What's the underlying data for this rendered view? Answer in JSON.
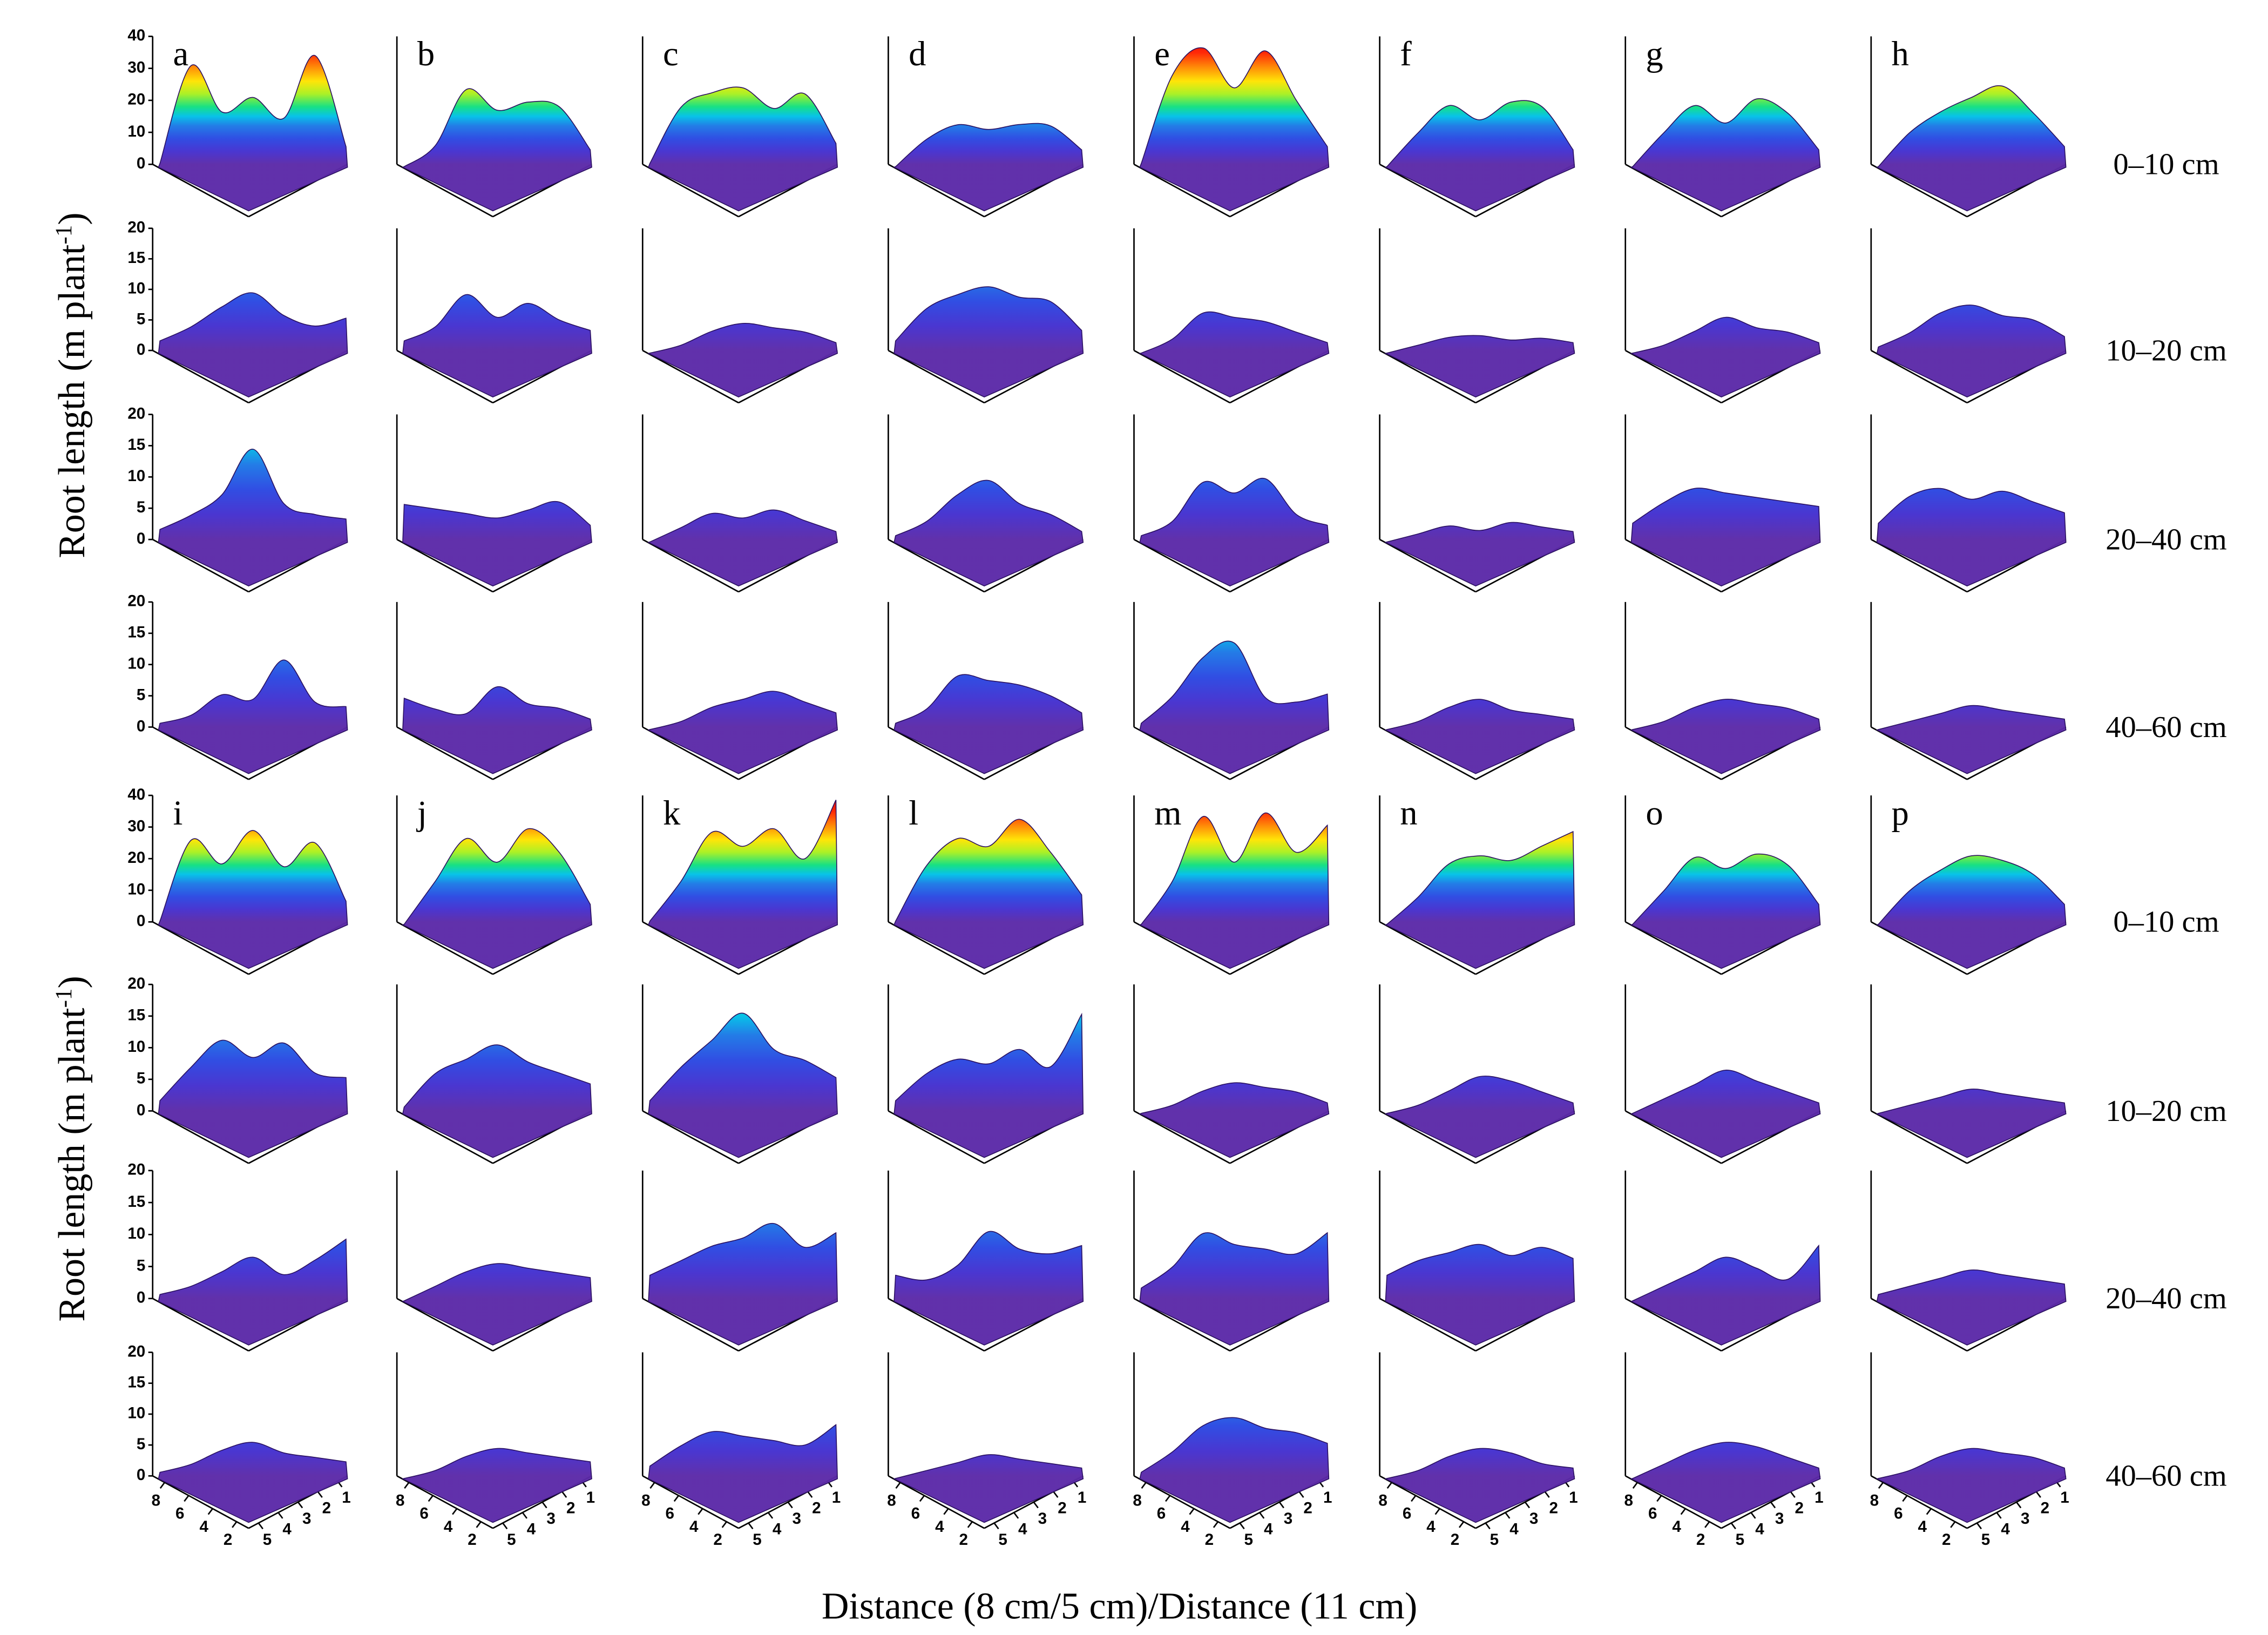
{
  "x_label": "Distance (8 cm/5 cm)/Distance (11 cm)",
  "y_labels": [
    {
      "text": "Root length (m plant",
      "sup": "-1",
      "end": ")"
    },
    {
      "text": "Root length (m plant",
      "sup": "-1",
      "end": ")"
    }
  ],
  "row_labels": [
    "0–10 cm",
    "10–20 cm",
    "20–40 cm",
    "40–60 cm",
    "0–10 cm",
    "10–20 cm",
    "20–40 cm",
    "40–60 cm"
  ],
  "chart_data": [
    {
      "type": "surface",
      "label": "a",
      "zlim": [
        0,
        40
      ],
      "zticks": [
        0,
        10,
        20,
        30,
        40
      ],
      "profile": [
        3,
        33,
        18,
        22,
        15,
        34,
        5
      ]
    },
    {
      "type": "surface",
      "label": "b",
      "zlim": [
        0,
        40
      ],
      "profile": [
        2,
        8,
        25,
        18,
        20,
        18,
        4
      ]
    },
    {
      "type": "surface",
      "label": "c",
      "zlim": [
        0,
        40
      ],
      "profile": [
        3,
        20,
        24,
        25,
        18,
        22,
        6
      ]
    },
    {
      "type": "surface",
      "label": "d",
      "zlim": [
        0,
        40
      ],
      "profile": [
        2,
        10,
        14,
        12,
        13,
        12,
        4
      ]
    },
    {
      "type": "surface",
      "label": "e",
      "zlim": [
        0,
        40
      ],
      "profile": [
        3,
        30,
        38,
        25,
        36,
        20,
        5
      ]
    },
    {
      "type": "surface",
      "label": "f",
      "zlim": [
        0,
        40
      ],
      "profile": [
        2,
        12,
        20,
        15,
        20,
        18,
        4
      ]
    },
    {
      "type": "surface",
      "label": "g",
      "zlim": [
        0,
        40
      ],
      "profile": [
        2,
        12,
        20,
        14,
        21,
        16,
        4
      ]
    },
    {
      "type": "surface",
      "label": "h",
      "zlim": [
        0,
        40
      ],
      "profile": [
        2,
        12,
        18,
        22,
        25,
        16,
        5
      ]
    },
    {
      "type": "surface",
      "zlim": [
        0,
        20
      ],
      "zticks": [
        0,
        5,
        10,
        15,
        20
      ],
      "profile": [
        3,
        5,
        8,
        10,
        6,
        4,
        5
      ]
    },
    {
      "type": "surface",
      "zlim": [
        0,
        20
      ],
      "profile": [
        3,
        5,
        10,
        6,
        8,
        5,
        3
      ]
    },
    {
      "type": "surface",
      "zlim": [
        0,
        20
      ],
      "profile": [
        1,
        2,
        4,
        5,
        4,
        3,
        1
      ]
    },
    {
      "type": "surface",
      "zlim": [
        0,
        20
      ],
      "profile": [
        3,
        8,
        10,
        11,
        9,
        8,
        3
      ]
    },
    {
      "type": "surface",
      "zlim": [
        0,
        20
      ],
      "profile": [
        1,
        3,
        7,
        6,
        5,
        3,
        1
      ]
    },
    {
      "type": "surface",
      "zlim": [
        0,
        20
      ],
      "profile": [
        1,
        2,
        3,
        3,
        2,
        2,
        1
      ]
    },
    {
      "type": "surface",
      "zlim": [
        0,
        20
      ],
      "profile": [
        1,
        2,
        4,
        6,
        4,
        3,
        1
      ]
    },
    {
      "type": "surface",
      "zlim": [
        0,
        20
      ],
      "profile": [
        2,
        4,
        7,
        8,
        6,
        5,
        2
      ]
    },
    {
      "type": "surface",
      "zlim": [
        0,
        20
      ],
      "zticks": [
        0,
        5,
        10,
        15,
        20
      ],
      "profile": [
        3,
        5,
        8,
        15,
        6,
        4,
        3
      ]
    },
    {
      "type": "surface",
      "zlim": [
        0,
        20
      ],
      "profile": [
        7,
        6,
        5,
        4,
        5,
        6,
        2
      ]
    },
    {
      "type": "surface",
      "zlim": [
        0,
        20
      ],
      "profile": [
        1,
        3,
        5,
        4,
        5,
        3,
        1
      ]
    },
    {
      "type": "surface",
      "zlim": [
        0,
        20
      ],
      "profile": [
        2,
        4,
        8,
        10,
        6,
        4,
        1
      ]
    },
    {
      "type": "surface",
      "zlim": [
        0,
        20
      ],
      "profile": [
        2,
        4,
        10,
        8,
        10,
        4,
        2
      ]
    },
    {
      "type": "surface",
      "zlim": [
        0,
        20
      ],
      "profile": [
        1,
        2,
        3,
        2,
        3,
        2,
        1
      ]
    },
    {
      "type": "surface",
      "zlim": [
        0,
        20
      ],
      "profile": [
        4,
        7,
        9,
        8,
        7,
        6,
        5
      ]
    },
    {
      "type": "surface",
      "zlim": [
        0,
        20
      ],
      "profile": [
        4,
        8,
        9,
        7,
        8,
        6,
        4
      ]
    },
    {
      "type": "surface",
      "zlim": [
        0,
        20
      ],
      "zticks": [
        0,
        5,
        10,
        15,
        20
      ],
      "profile": [
        2,
        3,
        6,
        5,
        11,
        4,
        3
      ]
    },
    {
      "type": "surface",
      "zlim": [
        0,
        20
      ],
      "profile": [
        6,
        4,
        3,
        7,
        4,
        3,
        1
      ]
    },
    {
      "type": "surface",
      "zlim": [
        0,
        20
      ],
      "profile": [
        1,
        2,
        4,
        5,
        6,
        4,
        2
      ]
    },
    {
      "type": "surface",
      "zlim": [
        0,
        20
      ],
      "profile": [
        2,
        4,
        9,
        8,
        7,
        5,
        2
      ]
    },
    {
      "type": "surface",
      "zlim": [
        0,
        20
      ],
      "profile": [
        2,
        6,
        12,
        14,
        5,
        4,
        5
      ]
    },
    {
      "type": "surface",
      "zlim": [
        0,
        20
      ],
      "profile": [
        1,
        2,
        4,
        5,
        3,
        2,
        1
      ]
    },
    {
      "type": "surface",
      "zlim": [
        0,
        20
      ],
      "profile": [
        1,
        2,
        4,
        5,
        4,
        3,
        1
      ]
    },
    {
      "type": "surface",
      "zlim": [
        0,
        20
      ],
      "profile": [
        1,
        2,
        3,
        4,
        3,
        2,
        1
      ]
    },
    {
      "type": "surface",
      "label": "i",
      "zlim": [
        0,
        40
      ],
      "zticks": [
        0,
        10,
        20,
        30,
        40
      ],
      "profile": [
        3,
        28,
        20,
        30,
        18,
        25,
        6
      ]
    },
    {
      "type": "surface",
      "label": "j",
      "zlim": [
        0,
        40
      ],
      "profile": [
        2,
        15,
        28,
        20,
        30,
        22,
        5
      ]
    },
    {
      "type": "surface",
      "label": "k",
      "zlim": [
        0,
        40
      ],
      "profile": [
        3,
        15,
        30,
        25,
        30,
        20,
        38
      ]
    },
    {
      "type": "surface",
      "label": "l",
      "zlim": [
        0,
        40
      ],
      "profile": [
        3,
        20,
        28,
        25,
        33,
        22,
        8
      ]
    },
    {
      "type": "surface",
      "label": "m",
      "zlim": [
        0,
        40
      ],
      "profile": [
        2,
        15,
        35,
        20,
        35,
        22,
        30
      ]
    },
    {
      "type": "surface",
      "label": "n",
      "zlim": [
        0,
        40
      ],
      "profile": [
        2,
        10,
        20,
        22,
        20,
        24,
        28
      ]
    },
    {
      "type": "surface",
      "label": "o",
      "zlim": [
        0,
        40
      ],
      "profile": [
        2,
        12,
        22,
        18,
        22,
        18,
        5
      ]
    },
    {
      "type": "surface",
      "label": "p",
      "zlim": [
        0,
        40
      ],
      "profile": [
        2,
        12,
        18,
        22,
        20,
        15,
        5
      ]
    },
    {
      "type": "surface",
      "zlim": [
        0,
        20
      ],
      "zticks": [
        0,
        5,
        10,
        15,
        20
      ],
      "profile": [
        3,
        8,
        12,
        9,
        11,
        6,
        5
      ]
    },
    {
      "type": "surface",
      "zlim": [
        0,
        20
      ],
      "profile": [
        2,
        7,
        9,
        11,
        8,
        6,
        4
      ]
    },
    {
      "type": "surface",
      "zlim": [
        0,
        20
      ],
      "profile": [
        3,
        8,
        12,
        16,
        10,
        8,
        5
      ]
    },
    {
      "type": "surface",
      "zlim": [
        0,
        20
      ],
      "profile": [
        3,
        7,
        9,
        8,
        10,
        7,
        15
      ]
    },
    {
      "type": "surface",
      "zlim": [
        0,
        20
      ],
      "profile": [
        1,
        2,
        4,
        5,
        4,
        3,
        1
      ]
    },
    {
      "type": "surface",
      "zlim": [
        0,
        20
      ],
      "profile": [
        1,
        2,
        4,
        6,
        5,
        3,
        1
      ]
    },
    {
      "type": "surface",
      "zlim": [
        0,
        20
      ],
      "profile": [
        1,
        3,
        5,
        7,
        5,
        3,
        1
      ]
    },
    {
      "type": "surface",
      "zlim": [
        0,
        20
      ],
      "profile": [
        1,
        2,
        3,
        4,
        3,
        2,
        1
      ]
    },
    {
      "type": "surface",
      "zlim": [
        0,
        20
      ],
      "zticks": [
        0,
        5,
        10,
        15,
        20
      ],
      "profile": [
        2,
        3,
        5,
        7,
        4,
        6,
        9
      ]
    },
    {
      "type": "surface",
      "zlim": [
        0,
        20
      ],
      "profile": [
        1,
        3,
        5,
        6,
        5,
        4,
        3
      ]
    },
    {
      "type": "surface",
      "zlim": [
        0,
        20
      ],
      "profile": [
        5,
        7,
        9,
        10,
        12,
        8,
        10
      ]
    },
    {
      "type": "surface",
      "zlim": [
        0,
        20
      ],
      "profile": [
        5,
        4,
        6,
        11,
        8,
        7,
        8
      ]
    },
    {
      "type": "surface",
      "zlim": [
        0,
        20
      ],
      "profile": [
        3,
        6,
        11,
        9,
        8,
        7,
        10
      ]
    },
    {
      "type": "surface",
      "zlim": [
        0,
        20
      ],
      "profile": [
        5,
        7,
        8,
        9,
        7,
        8,
        6
      ]
    },
    {
      "type": "surface",
      "zlim": [
        0,
        20
      ],
      "profile": [
        1,
        3,
        5,
        7,
        5,
        3,
        8
      ]
    },
    {
      "type": "surface",
      "zlim": [
        0,
        20
      ],
      "profile": [
        2,
        3,
        4,
        5,
        4,
        3,
        2
      ]
    },
    {
      "type": "surface",
      "zlim": [
        0,
        20
      ],
      "zticks": [
        0,
        5,
        10,
        15,
        20
      ],
      "xlim": [
        9,
        1
      ],
      "xticks": [
        8,
        6,
        4,
        2
      ],
      "ylim": [
        5.5,
        0.5
      ],
      "yticks": [
        5,
        4,
        3,
        2,
        1
      ],
      "profile": [
        2,
        3,
        5,
        6,
        4,
        3,
        2
      ]
    },
    {
      "type": "surface",
      "zlim": [
        0,
        20
      ],
      "xlim": [
        9,
        1
      ],
      "xticks": [
        8,
        6,
        4,
        2
      ],
      "ylim": [
        5.5,
        0.5
      ],
      "yticks": [
        5,
        4,
        3,
        2,
        1
      ],
      "profile": [
        1,
        2,
        4,
        5,
        4,
        3,
        2
      ]
    },
    {
      "type": "surface",
      "zlim": [
        0,
        20
      ],
      "xlim": [
        9,
        1
      ],
      "xticks": [
        8,
        6,
        4,
        2
      ],
      "ylim": [
        5.5,
        0.5
      ],
      "yticks": [
        5,
        4,
        3,
        2,
        1
      ],
      "profile": [
        3,
        6,
        8,
        7,
        6,
        5,
        8
      ]
    },
    {
      "type": "surface",
      "zlim": [
        0,
        20
      ],
      "xlim": [
        9,
        1
      ],
      "xticks": [
        8,
        6,
        4,
        2
      ],
      "ylim": [
        5.5,
        0.5
      ],
      "yticks": [
        5,
        4,
        3,
        2,
        1
      ],
      "profile": [
        1,
        2,
        3,
        4,
        3,
        2,
        1
      ]
    },
    {
      "type": "surface",
      "zlim": [
        0,
        20
      ],
      "xlim": [
        9,
        1
      ],
      "xticks": [
        8,
        6,
        4,
        2
      ],
      "ylim": [
        5.5,
        0.5
      ],
      "yticks": [
        5,
        4,
        3,
        2,
        1
      ],
      "profile": [
        2,
        5,
        9,
        10,
        8,
        7,
        5
      ]
    },
    {
      "type": "surface",
      "zlim": [
        0,
        20
      ],
      "xlim": [
        9,
        1
      ],
      "xticks": [
        8,
        6,
        4,
        2
      ],
      "ylim": [
        5.5,
        0.5
      ],
      "yticks": [
        5,
        4,
        3,
        2,
        1
      ],
      "profile": [
        1,
        2,
        4,
        5,
        4,
        2,
        1
      ]
    },
    {
      "type": "surface",
      "zlim": [
        0,
        20
      ],
      "xlim": [
        9,
        1
      ],
      "xticks": [
        8,
        6,
        4,
        2
      ],
      "ylim": [
        5.5,
        0.5
      ],
      "yticks": [
        5,
        4,
        3,
        2,
        1
      ],
      "profile": [
        1,
        3,
        5,
        6,
        5,
        3,
        1
      ]
    },
    {
      "type": "surface",
      "zlim": [
        0,
        20
      ],
      "xlim": [
        9,
        1
      ],
      "xticks": [
        8,
        6,
        4,
        2
      ],
      "ylim": [
        5.5,
        0.5
      ],
      "yticks": [
        5,
        4,
        3,
        2,
        1
      ],
      "profile": [
        1,
        2,
        4,
        5,
        4,
        3,
        1
      ]
    }
  ]
}
